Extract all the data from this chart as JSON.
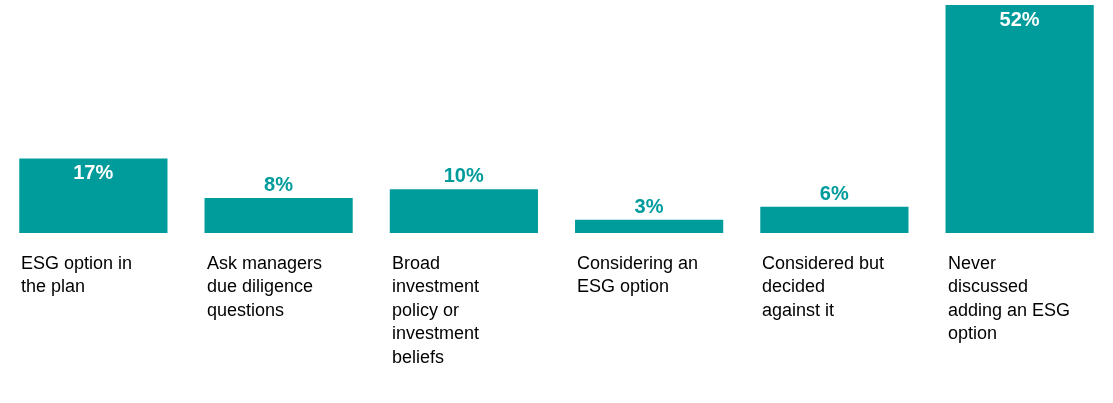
{
  "chart_data": {
    "type": "bar",
    "categories": [
      "ESG option in the plan",
      "Ask managers due diligence questions",
      "Broad investment policy or investment beliefs",
      "Considering an ESG option",
      "Considered but decided against it",
      "Never discussed adding an ESG option"
    ],
    "values": [
      17,
      8,
      10,
      3,
      6,
      52
    ],
    "value_labels": [
      "17%",
      "8%",
      "10%",
      "3%",
      "6%",
      "52%"
    ],
    "color": "#009b9b"
  }
}
